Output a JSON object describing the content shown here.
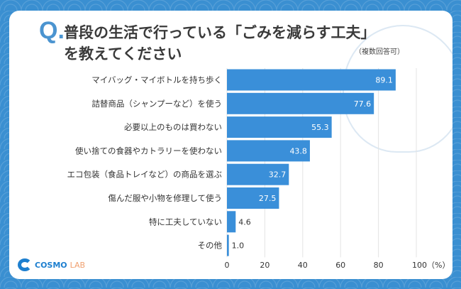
{
  "header": {
    "q_mark": "Q.",
    "title_line1": "普段の生活で行っている「ごみを減らす工夫」",
    "title_line2": "を教えてください",
    "note": "（複数回答可）"
  },
  "logo": {
    "part1": "COSMO",
    "part2": "LAB"
  },
  "chart_data": {
    "type": "bar",
    "orientation": "horizontal",
    "categories": [
      "マイバッグ・マイボトルを持ち歩く",
      "詰替商品（シャンプーなど）を使う",
      "必要以上のものは買わない",
      "使い捨ての食器やカトラリーを使わない",
      "エコ包装（食品トレイなど）の商品を選ぶ",
      "傷んだ服や小物を修理して使う",
      "特に工夫していない",
      "その他"
    ],
    "values": [
      89.1,
      77.6,
      55.3,
      43.8,
      32.7,
      27.5,
      4.6,
      1.0
    ],
    "xlim": [
      0,
      100
    ],
    "xticks": [
      "0",
      "20",
      "40",
      "60",
      "80",
      "100（%）"
    ],
    "tick_values": [
      0,
      20,
      40,
      60,
      80,
      100
    ],
    "grid": true,
    "bar_color": "#3a8fd9"
  }
}
